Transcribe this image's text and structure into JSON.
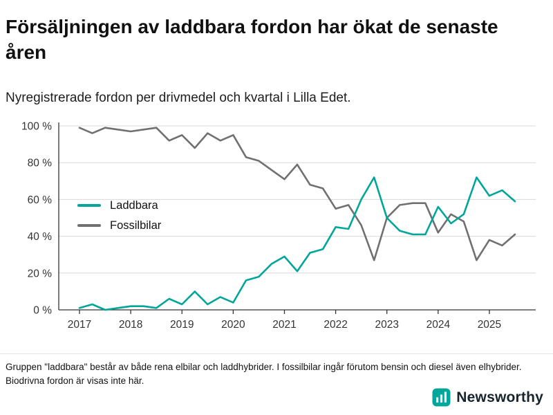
{
  "title": "Försäljningen av laddbara fordon har ökat de senaste åren",
  "subtitle": "Nyregistrerade fordon per drivmedel och kvartal i Lilla Edet.",
  "footnote": "Gruppen \"laddbara\" består av både rena elbilar och laddhybrider. I fossilbilar ingår förutom bensin och diesel även elhybrider. Biodrivna fordon är visas inte här.",
  "brand": {
    "name": "Newsworthy"
  },
  "colors": {
    "accent_teal": "#00a69a",
    "series_gray": "#707070",
    "grid": "#d8d8d8",
    "axis": "#333333",
    "brand_teal": "#00a69a"
  },
  "chart_data": {
    "type": "line",
    "x": [
      "2017 K1",
      "2017 K2",
      "2017 K3",
      "2017 K4",
      "2018 K1",
      "2018 K2",
      "2018 K3",
      "2018 K4",
      "2019 K1",
      "2019 K2",
      "2019 K3",
      "2019 K4",
      "2020 K1",
      "2020 K2",
      "2020 K3",
      "2020 K4",
      "2021 K1",
      "2021 K2",
      "2021 K3",
      "2021 K4",
      "2022 K1",
      "2022 K2",
      "2022 K3",
      "2022 K4",
      "2023 K1",
      "2023 K2",
      "2023 K3",
      "2023 K4",
      "2024 K1",
      "2024 K2",
      "2024 K3",
      "2024 K4",
      "2025 K1",
      "2025 K2",
      "2025 K3"
    ],
    "series": [
      {
        "name": "Laddbara",
        "color": "#00a69a",
        "values": [
          1,
          3,
          0,
          1,
          2,
          2,
          1,
          6,
          3,
          10,
          3,
          7,
          4,
          16,
          18,
          25,
          29,
          21,
          31,
          33,
          45,
          44,
          60,
          72,
          50,
          43,
          41,
          41,
          56,
          47,
          52,
          72,
          62,
          65,
          59
        ]
      },
      {
        "name": "Fossilbilar",
        "color": "#707070",
        "values": [
          99,
          96,
          99,
          98,
          97,
          98,
          99,
          92,
          95,
          88,
          96,
          92,
          95,
          83,
          81,
          76,
          71,
          79,
          68,
          66,
          55,
          57,
          46,
          27,
          50,
          57,
          58,
          58,
          42,
          52,
          48,
          27,
          38,
          35,
          41
        ]
      }
    ],
    "ylim": [
      0,
      100
    ],
    "yticks": [
      0,
      20,
      40,
      60,
      80,
      100
    ],
    "ytick_suffix": " %",
    "xticks": [
      {
        "label": "2017",
        "index": 0
      },
      {
        "label": "2018",
        "index": 4
      },
      {
        "label": "2019",
        "index": 8
      },
      {
        "label": "2020",
        "index": 12
      },
      {
        "label": "2021",
        "index": 16
      },
      {
        "label": "2022",
        "index": 20
      },
      {
        "label": "2023",
        "index": 24
      },
      {
        "label": "2024",
        "index": 28
      },
      {
        "label": "2025",
        "index": 32
      }
    ],
    "grid": true,
    "legend_position": "inside-left"
  }
}
